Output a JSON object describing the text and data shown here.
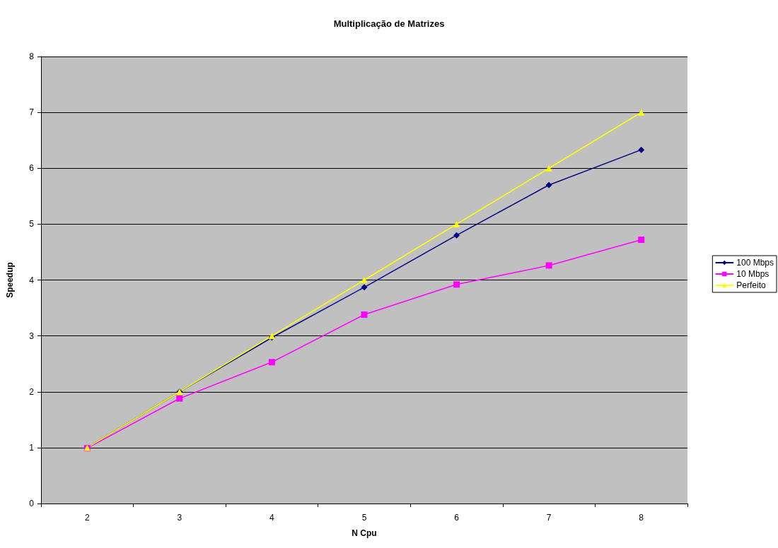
{
  "chart_data": {
    "type": "line",
    "title": "Multiplicação de Matrizes",
    "xlabel": "N Cpu",
    "ylabel": "Speedup",
    "categories": [
      "2",
      "3",
      "4",
      "5",
      "6",
      "7",
      "8"
    ],
    "ylim": [
      0,
      8
    ],
    "yticks": [
      0,
      1,
      2,
      3,
      4,
      5,
      6,
      7,
      8
    ],
    "grid": "y",
    "legend": "right",
    "line_style": "solid",
    "series": [
      {
        "name": "100 Mbps",
        "color": "#000080",
        "marker": "diamond",
        "values": [
          1.0,
          2.0,
          2.97,
          3.87,
          4.8,
          5.7,
          6.33
        ]
      },
      {
        "name": "10 Mbps",
        "color": "#ff00ff",
        "marker": "square",
        "values": [
          0.99,
          1.88,
          2.53,
          3.38,
          3.92,
          4.26,
          4.72
        ]
      },
      {
        "name": "Perfeito",
        "color": "#ffff00",
        "marker": "triangle",
        "values": [
          1,
          2,
          3,
          4,
          5,
          6,
          7
        ]
      }
    ]
  }
}
